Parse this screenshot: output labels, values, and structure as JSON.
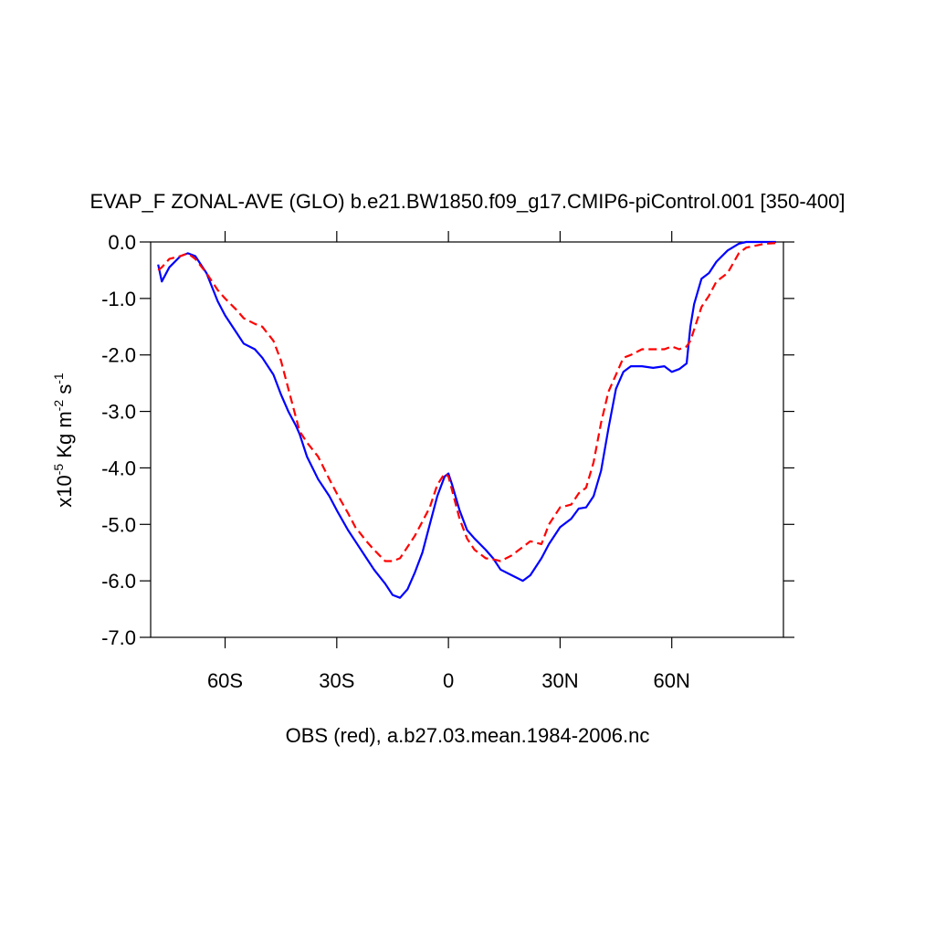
{
  "chart_data": {
    "type": "line",
    "title": "EVAP_F ZONAL-AVE (GLO) b.e21.BW1850.f09_g17.CMIP6-piControl.001 [350-400]",
    "xlabel": "OBS (red), a.b27.03.mean.1984-2006.nc",
    "ylabel_parts": [
      {
        "text": "x10",
        "sup": "-5"
      },
      {
        "text": " Kg m",
        "sup": "-2"
      },
      {
        "text": " s",
        "sup": "-1"
      }
    ],
    "xlim": [
      -80,
      90
    ],
    "xticks": [
      {
        "value": -60,
        "label": "60S"
      },
      {
        "value": -30,
        "label": "30S"
      },
      0,
      {
        "value": 30,
        "label": "30N"
      },
      {
        "value": 60,
        "label": "60N"
      }
    ],
    "ylim": [
      -7,
      0
    ],
    "yticks": [
      {
        "value": 0,
        "label": "0.0"
      },
      {
        "value": -1,
        "label": "-1.0"
      },
      {
        "value": -2,
        "label": "-2.0"
      },
      {
        "value": -3,
        "label": "-3.0"
      },
      {
        "value": -4,
        "label": "-4.0"
      },
      {
        "value": -5,
        "label": "-5.0"
      },
      {
        "value": -6,
        "label": "-6.0"
      },
      {
        "value": -7,
        "label": "-7.0"
      }
    ],
    "x": [
      -78,
      -77,
      -75,
      -72,
      -70,
      -68,
      -65,
      -62,
      -60,
      -57,
      -55,
      -52,
      -50,
      -47,
      -45,
      -43,
      -41,
      -40,
      -38,
      -35,
      -32,
      -30,
      -27,
      -25,
      -22,
      -20,
      -17,
      -15,
      -13,
      -11,
      -9,
      -7,
      -5,
      -3,
      -1,
      0,
      1,
      3,
      5,
      7,
      10,
      12,
      14,
      17,
      20,
      22,
      25,
      27,
      30,
      33,
      35,
      37,
      39,
      41,
      43,
      45,
      47,
      49,
      52,
      55,
      58,
      60,
      62,
      64,
      65,
      66,
      68,
      70,
      72,
      75,
      78,
      80,
      85,
      88
    ],
    "series": [
      {
        "color": "#0000ff",
        "dash": false,
        "values": [
          -0.4,
          -0.7,
          -0.45,
          -0.25,
          -0.2,
          -0.25,
          -0.55,
          -1.05,
          -1.3,
          -1.6,
          -1.8,
          -1.9,
          -2.05,
          -2.35,
          -2.7,
          -3.0,
          -3.25,
          -3.4,
          -3.8,
          -4.2,
          -4.5,
          -4.75,
          -5.1,
          -5.3,
          -5.6,
          -5.8,
          -6.05,
          -6.25,
          -6.3,
          -6.15,
          -5.85,
          -5.5,
          -5.0,
          -4.5,
          -4.15,
          -4.1,
          -4.3,
          -4.75,
          -5.1,
          -5.25,
          -5.45,
          -5.6,
          -5.8,
          -5.9,
          -6.0,
          -5.9,
          -5.6,
          -5.35,
          -5.05,
          -4.9,
          -4.72,
          -4.7,
          -4.5,
          -4.05,
          -3.3,
          -2.6,
          -2.3,
          -2.2,
          -2.2,
          -2.23,
          -2.2,
          -2.3,
          -2.25,
          -2.15,
          -1.5,
          -1.1,
          -0.65,
          -0.55,
          -0.35,
          -0.15,
          -0.03,
          0,
          0,
          0
        ]
      },
      {
        "color": "#ff0000",
        "dash": true,
        "values": [
          -0.5,
          -0.45,
          -0.3,
          -0.25,
          -0.2,
          -0.3,
          -0.55,
          -0.85,
          -1.0,
          -1.2,
          -1.35,
          -1.45,
          -1.5,
          -1.75,
          -2.1,
          -2.6,
          -3.1,
          -3.35,
          -3.55,
          -3.8,
          -4.2,
          -4.45,
          -4.8,
          -5.05,
          -5.3,
          -5.45,
          -5.65,
          -5.65,
          -5.6,
          -5.4,
          -5.2,
          -4.95,
          -4.7,
          -4.3,
          -4.1,
          -4.15,
          -4.4,
          -4.9,
          -5.25,
          -5.45,
          -5.6,
          -5.62,
          -5.65,
          -5.55,
          -5.4,
          -5.3,
          -5.35,
          -5.0,
          -4.7,
          -4.65,
          -4.45,
          -4.35,
          -3.9,
          -3.2,
          -2.65,
          -2.35,
          -2.05,
          -2.0,
          -1.9,
          -1.9,
          -1.9,
          -1.85,
          -1.9,
          -1.85,
          -1.75,
          -1.55,
          -1.15,
          -0.95,
          -0.7,
          -0.55,
          -0.2,
          -0.1,
          -0.03,
          -0.02
        ]
      }
    ]
  }
}
